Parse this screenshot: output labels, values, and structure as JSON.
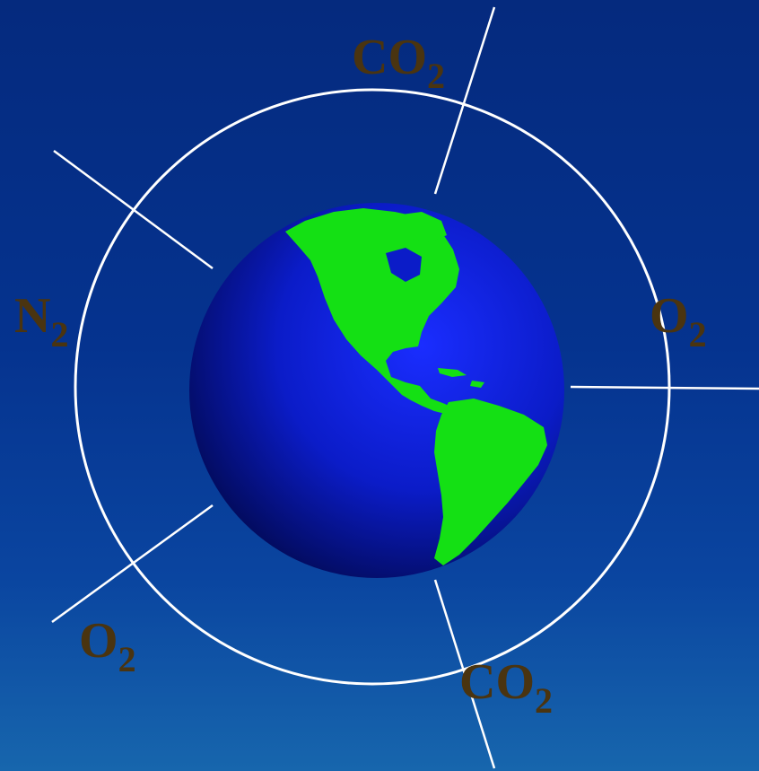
{
  "diagram": {
    "labels": [
      {
        "id": "co2-top",
        "main": "CO",
        "sub": "2"
      },
      {
        "id": "n2-left",
        "main": "N",
        "sub": "2"
      },
      {
        "id": "o2-right",
        "main": "O",
        "sub": "2"
      },
      {
        "id": "o2-bottom-left",
        "main": "O",
        "sub": "2"
      },
      {
        "id": "co2-bottom",
        "main": "CO",
        "sub": "2"
      }
    ],
    "colors": {
      "background_top": "#052a7e",
      "background_bottom": "#1766ad",
      "ocean": "#0a1fd6",
      "land": "#14e014",
      "orbit_line": "#ffffff",
      "label_text": "#4a3410"
    }
  }
}
